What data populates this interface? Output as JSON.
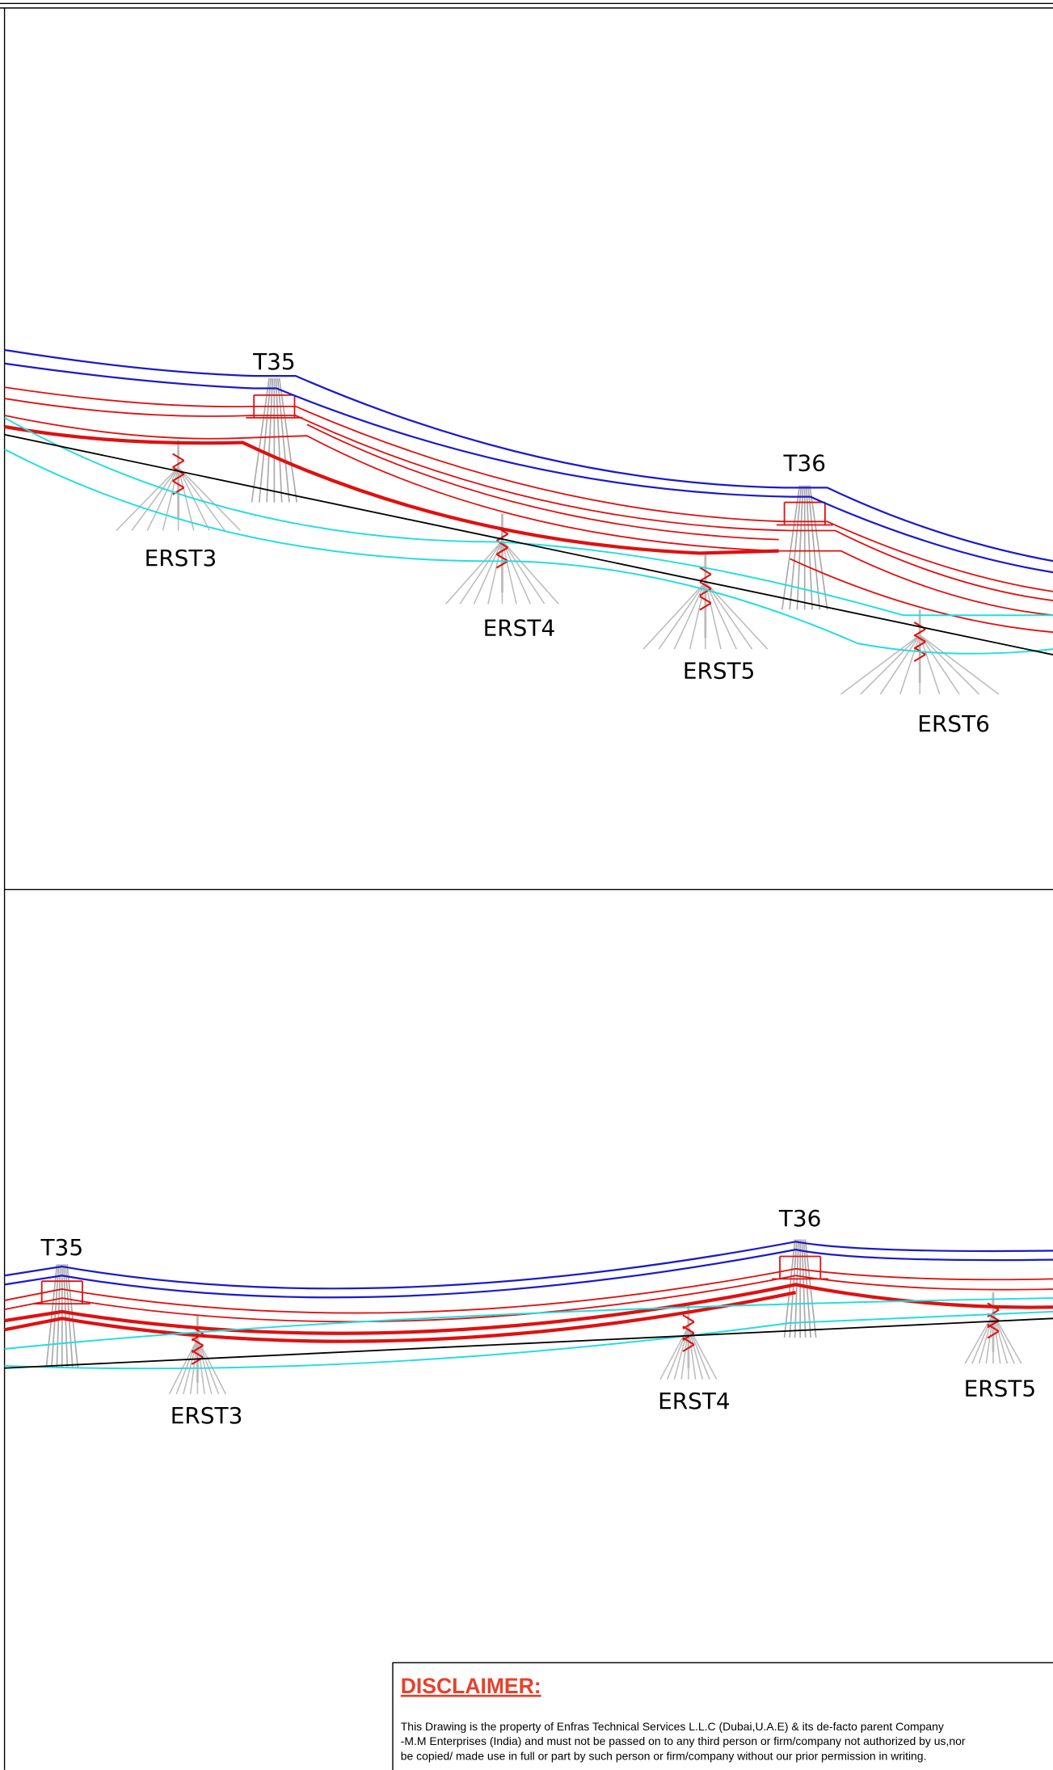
{
  "top_view": {
    "towers": [
      {
        "label": "T35"
      },
      {
        "label": "T36"
      }
    ],
    "erst": [
      {
        "label": "ERST3"
      },
      {
        "label": "ERST4"
      },
      {
        "label": "ERST5"
      },
      {
        "label": "ERST6"
      }
    ]
  },
  "bottom_view": {
    "towers": [
      {
        "label": "T35"
      },
      {
        "label": "T36"
      }
    ],
    "erst": [
      {
        "label": "ERST3"
      },
      {
        "label": "ERST4"
      },
      {
        "label": "ERST5"
      }
    ]
  },
  "disclaimer": {
    "title": "DISCLAIMER:",
    "lines": [
      "This Drawing is the property of Enfras Technical Services L.L.C (Dubai,U.A.E) & its de-facto parent Company",
      "-M.M Enterprises (India) and must not be passed on to any third person or firm/company not authorized by us,nor",
      "be copied/ made use in full or part by such person or firm/company without our prior permission in writing."
    ]
  }
}
